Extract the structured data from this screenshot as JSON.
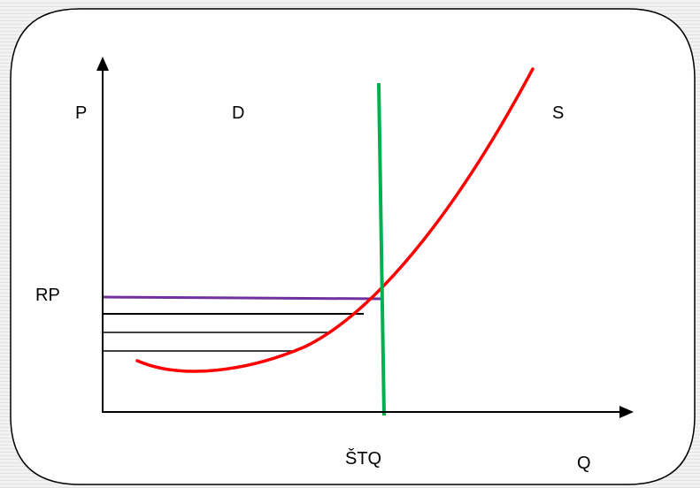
{
  "labels": {
    "p_axis": "P",
    "q_axis": "Q",
    "demand": "D",
    "supply": "S",
    "reserve_price": "RP",
    "quantity_marker": "ŠTQ"
  },
  "colors": {
    "supply_curve": "#ff0000",
    "demand_line": "#00b050",
    "reserve_price_line": "#7030a0",
    "axes": "#000000",
    "frame_border": "#000000",
    "background_stripes": "#e3e3e3"
  }
}
